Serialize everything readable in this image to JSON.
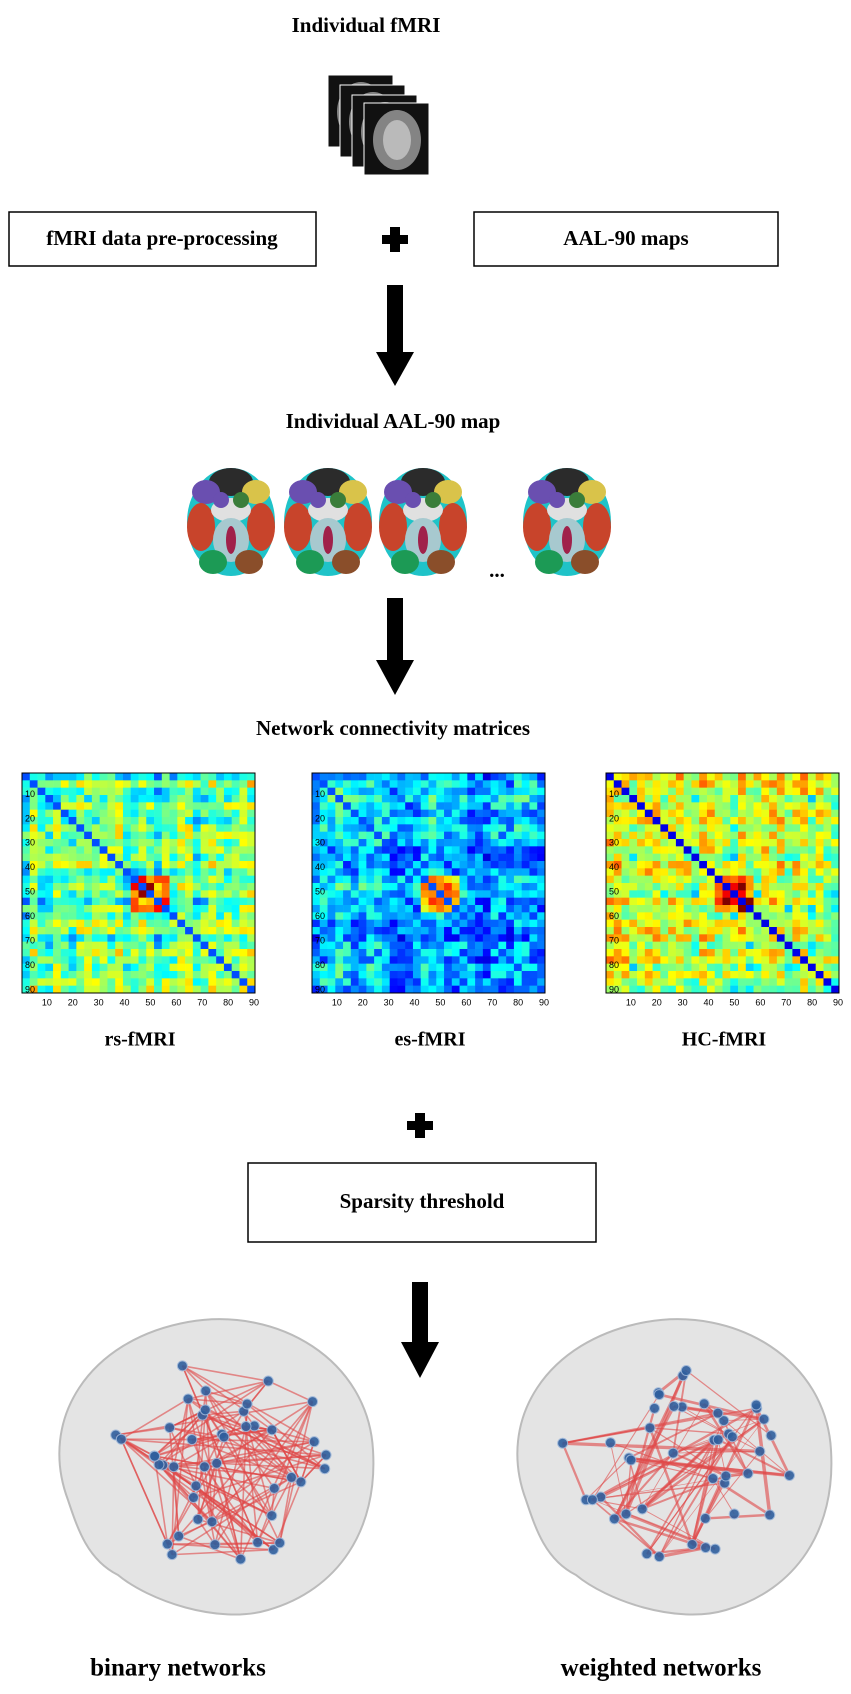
{
  "header": {
    "title": "Individual fMRI"
  },
  "steps": {
    "preprocessing": "fMRI data pre-processing",
    "atlas": "AAL-90 maps",
    "individual_map": "Individual AAL-90 map",
    "ellipsis": "...",
    "matrices_title": "Network connectivity matrices",
    "sparsity": "Sparsity threshold"
  },
  "matrices": {
    "ticks": [
      "10",
      "20",
      "30",
      "40",
      "50",
      "60",
      "70",
      "80",
      "90"
    ],
    "labels": [
      "rs-fMRI",
      "es-fMRI",
      "HC-fMRI"
    ]
  },
  "networks": {
    "labels": [
      "binary networks",
      "weighted networks"
    ]
  }
}
